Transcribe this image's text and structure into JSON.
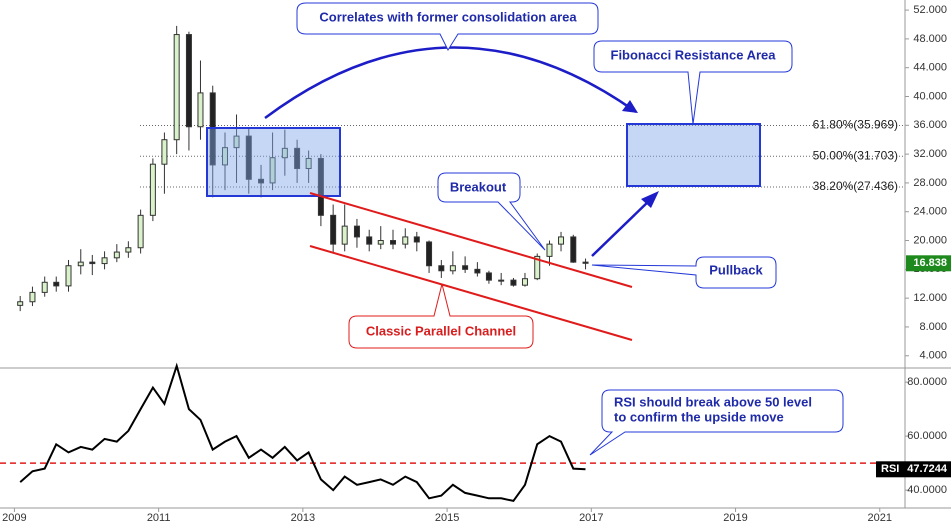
{
  "chart_data": [
    {
      "type": "candlestick",
      "x": [
        2009.08,
        2009.25,
        2009.42,
        2009.58,
        2009.75,
        2009.92,
        2010.08,
        2010.25,
        2010.42,
        2010.58,
        2010.75,
        2010.92,
        2011.08,
        2011.25,
        2011.42,
        2011.58,
        2011.75,
        2011.92,
        2012.08,
        2012.25,
        2012.42,
        2012.58,
        2012.75,
        2012.92,
        2013.08,
        2013.25,
        2013.42,
        2013.58,
        2013.75,
        2013.92,
        2014.08,
        2014.25,
        2014.42,
        2014.58,
        2014.75,
        2014.92,
        2015.08,
        2015.25,
        2015.42,
        2015.58,
        2015.75,
        2015.92,
        2016.08,
        2016.25,
        2016.42,
        2016.58,
        2016.75,
        2016.92
      ],
      "open": [
        11.0,
        11.5,
        12.8,
        14.2,
        13.7,
        16.5,
        17.0,
        16.8,
        17.6,
        18.4,
        19.0,
        23.5,
        30.6,
        34.0,
        48.6,
        35.8,
        40.5,
        30.5,
        32.9,
        34.5,
        28.5,
        28.0,
        31.5,
        32.8,
        30.0,
        31.4,
        23.5,
        19.5,
        22.0,
        20.5,
        19.5,
        20.0,
        19.5,
        20.5,
        19.8,
        16.5,
        15.8,
        16.5,
        16.0,
        15.5,
        14.5,
        14.5,
        13.8,
        14.7,
        17.8,
        19.5,
        20.5,
        17.0
      ],
      "high": [
        12.3,
        13.6,
        15.0,
        15.0,
        17.3,
        18.8,
        18.0,
        18.5,
        19.5,
        19.9,
        24.3,
        31.4,
        35.0,
        49.8,
        49.0,
        45.0,
        41.5,
        35.0,
        37.5,
        35.5,
        30.5,
        35.0,
        35.4,
        34.0,
        32.5,
        32.0,
        25.0,
        25.0,
        23.0,
        21.5,
        22.0,
        21.5,
        21.7,
        21.2,
        20.0,
        17.3,
        18.5,
        17.8,
        17.0,
        15.8,
        15.5,
        14.8,
        15.5,
        18.2,
        20.0,
        21.2,
        20.8,
        17.5
      ],
      "low": [
        10.2,
        10.9,
        12.2,
        12.9,
        12.9,
        15.3,
        15.2,
        16.0,
        17.0,
        17.6,
        18.2,
        22.7,
        26.5,
        32.0,
        32.5,
        34.0,
        26.0,
        27.0,
        28.0,
        26.5,
        26.0,
        27.0,
        29.0,
        28.0,
        28.0,
        22.0,
        18.2,
        18.5,
        19.0,
        18.5,
        18.8,
        18.8,
        18.9,
        18.5,
        15.5,
        14.8,
        15.3,
        15.5,
        15.0,
        14.0,
        13.8,
        13.6,
        13.6,
        14.5,
        16.5,
        18.5,
        16.9,
        16.0
      ],
      "close": [
        11.5,
        12.8,
        14.2,
        13.7,
        16.5,
        17.0,
        16.8,
        17.6,
        18.4,
        19.0,
        23.5,
        30.6,
        34.0,
        48.6,
        35.8,
        40.5,
        30.5,
        32.9,
        34.5,
        28.5,
        28.0,
        31.5,
        32.8,
        30.0,
        31.4,
        23.5,
        19.5,
        22.0,
        20.5,
        19.5,
        20.0,
        19.5,
        20.5,
        19.8,
        16.5,
        15.8,
        16.5,
        16.0,
        15.5,
        14.5,
        14.5,
        13.8,
        14.7,
        17.8,
        19.5,
        20.5,
        17.0,
        16.838
      ],
      "up_color": "#d9f2c9",
      "down_color": "#222222",
      "xlim": [
        2008.8,
        2021.35
      ],
      "xticks": [
        2009,
        2011,
        2013,
        2015,
        2017,
        2019,
        2021
      ],
      "ylim": [
        2.3,
        53.4
      ],
      "yticks": [
        {
          "value": 4,
          "label": "4.000"
        },
        {
          "value": 8,
          "label": "8.000"
        },
        {
          "value": 12,
          "label": "12.000"
        },
        {
          "value": 16,
          "label": "16.000"
        },
        {
          "value": 20,
          "label": "20.000"
        },
        {
          "value": 24,
          "label": "24.000"
        },
        {
          "value": 28,
          "label": "28.000"
        },
        {
          "value": 32,
          "label": "32.000"
        },
        {
          "value": 36,
          "label": "36.000"
        },
        {
          "value": 40,
          "label": "40.000"
        },
        {
          "value": 44,
          "label": "44.000"
        },
        {
          "value": 48,
          "label": "48.000"
        },
        {
          "value": 52,
          "label": "52.000"
        }
      ],
      "fib_levels": [
        {
          "value": 35.969,
          "label": "61.80%(35.969)"
        },
        {
          "value": 31.703,
          "label": "50.00%(31.703)"
        },
        {
          "value": 27.436,
          "label": "38.20%(27.436)"
        }
      ],
      "annotations": [
        "Correlates with former consolidation area",
        "Fibonacci Resistance Area",
        "Breakout",
        "Pullback",
        "Classic Parallel Channel"
      ]
    },
    {
      "type": "line",
      "x": [
        2009.08,
        2009.25,
        2009.42,
        2009.58,
        2009.75,
        2009.92,
        2010.08,
        2010.25,
        2010.42,
        2010.58,
        2010.75,
        2010.92,
        2011.08,
        2011.25,
        2011.42,
        2011.58,
        2011.75,
        2011.92,
        2012.08,
        2012.25,
        2012.42,
        2012.58,
        2012.75,
        2012.92,
        2013.08,
        2013.25,
        2013.42,
        2013.58,
        2013.75,
        2013.92,
        2014.08,
        2014.25,
        2014.42,
        2014.58,
        2014.75,
        2014.92,
        2015.08,
        2015.25,
        2015.42,
        2015.58,
        2015.75,
        2015.92,
        2016.08,
        2016.25,
        2016.42,
        2016.58,
        2016.75,
        2016.92
      ],
      "series": [
        {
          "name": "RSI",
          "color": "#000000",
          "values": [
            43,
            47,
            48,
            57,
            54,
            56,
            55,
            59,
            58,
            62,
            70,
            78,
            72,
            86,
            70,
            66,
            55,
            58,
            60,
            52,
            55,
            52,
            56,
            51,
            54,
            44,
            40,
            45,
            42,
            43,
            44,
            42,
            45,
            43,
            37,
            38,
            42,
            39,
            38,
            37,
            37,
            36,
            42,
            57,
            60,
            58,
            48,
            47.7244
          ]
        }
      ],
      "reference_line": 50,
      "xlim": [
        2008.8,
        2021.35
      ],
      "ylim": [
        34.5,
        84.5
      ],
      "yticks": [
        {
          "value": 40,
          "label": "40.0000"
        },
        {
          "value": 60,
          "label": "60.0000"
        },
        {
          "value": 80,
          "label": "80.0000"
        }
      ],
      "annotations": [
        "RSI should break above 50 level",
        "to confirm the upside move"
      ]
    }
  ]
}
